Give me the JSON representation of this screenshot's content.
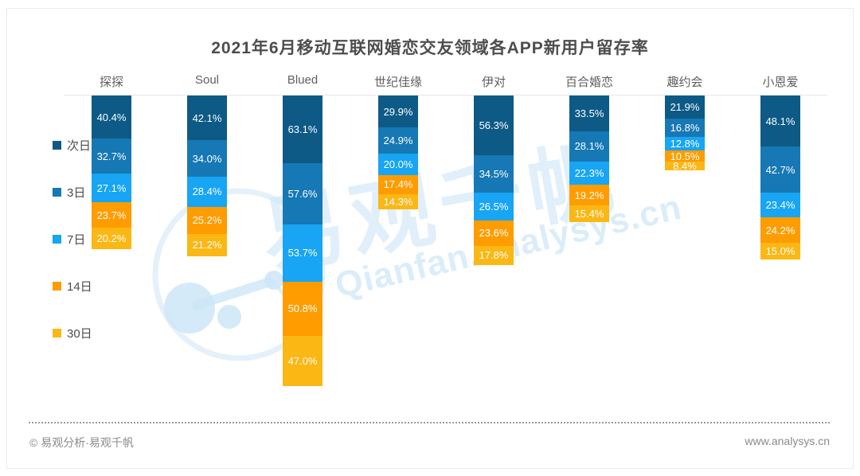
{
  "title": "2021年6月移动互联网婚恋交友领域各APP新用户留存率",
  "chart_data": {
    "type": "bar",
    "stacked": true,
    "unit": "%",
    "legend_position": "left",
    "categories": [
      "探探",
      "Soul",
      "Blued",
      "世纪佳缘",
      "伊对",
      "百合婚恋",
      "趣约会",
      "小恩爱"
    ],
    "series": [
      {
        "name": "次日",
        "color": "#0d5a87",
        "values": [
          40.4,
          42.1,
          63.1,
          29.9,
          56.3,
          33.5,
          21.9,
          48.1
        ]
      },
      {
        "name": "3日",
        "color": "#1678b4",
        "values": [
          32.7,
          34.0,
          57.6,
          24.9,
          34.5,
          28.1,
          16.8,
          42.7
        ]
      },
      {
        "name": "7日",
        "color": "#17a5f4",
        "values": [
          27.1,
          28.4,
          53.7,
          20.0,
          26.5,
          22.3,
          12.8,
          23.4
        ]
      },
      {
        "name": "14日",
        "color": "#ff9c00",
        "values": [
          23.7,
          25.2,
          50.8,
          17.4,
          23.6,
          19.2,
          10.5,
          24.2
        ]
      },
      {
        "name": "30日",
        "color": "#fbb714",
        "values": [
          20.2,
          21.2,
          47.0,
          14.3,
          17.8,
          15.4,
          8.4,
          15.0
        ]
      }
    ],
    "value_label_format": "one decimal + %"
  },
  "watermark": {
    "cn": "易观千帆",
    "en": "Qianfan.analysys.cn"
  },
  "footer": {
    "left": "© 易观分析·易观千帆",
    "right": "www.analysys.cn"
  }
}
